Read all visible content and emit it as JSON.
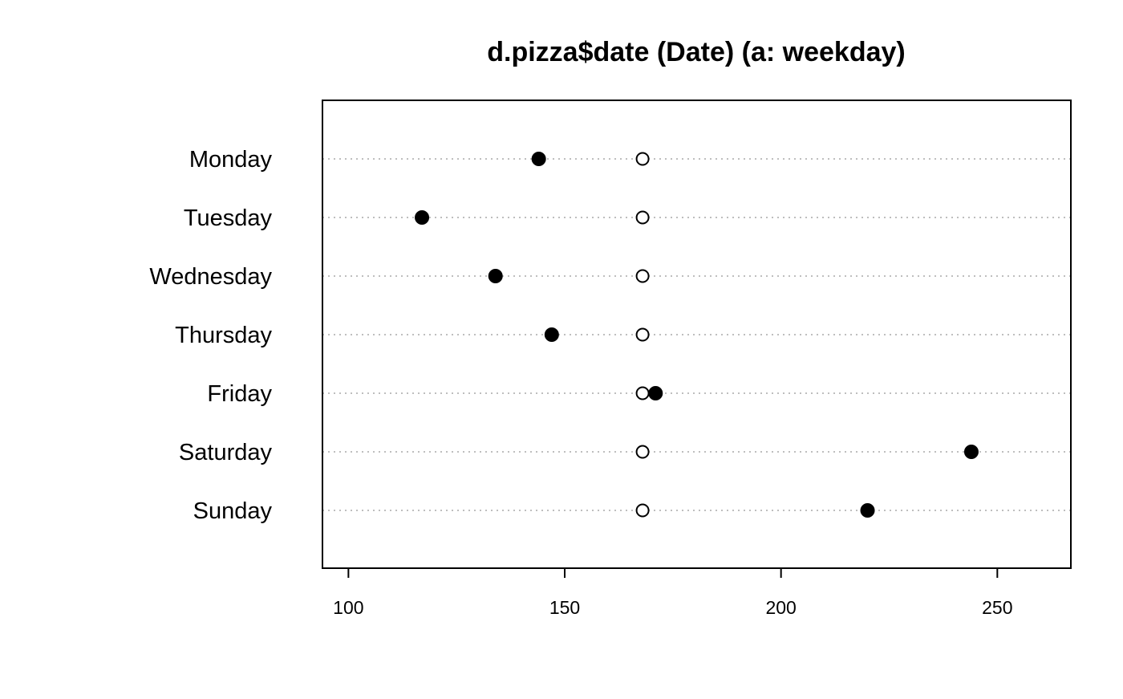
{
  "chart_data": {
    "type": "dotplot",
    "title": "d.pizza$date (Date) (a: weekday)",
    "xlabel": "",
    "ylabel": "",
    "categories": [
      "Monday",
      "Tuesday",
      "Wednesday",
      "Thursday",
      "Friday",
      "Saturday",
      "Sunday"
    ],
    "series": [
      {
        "marker": "filled",
        "values": [
          144,
          117,
          134,
          147,
          171,
          244,
          220
        ]
      },
      {
        "marker": "open",
        "values": [
          168,
          168,
          168,
          168,
          168,
          168,
          168
        ]
      }
    ],
    "xlim": [
      94,
      267
    ],
    "xticks": [
      100,
      150,
      200,
      250
    ],
    "grid": "horizontal dotted",
    "legend": "none",
    "colors": {
      "points": "#000000",
      "grid": "#bebebe"
    }
  }
}
